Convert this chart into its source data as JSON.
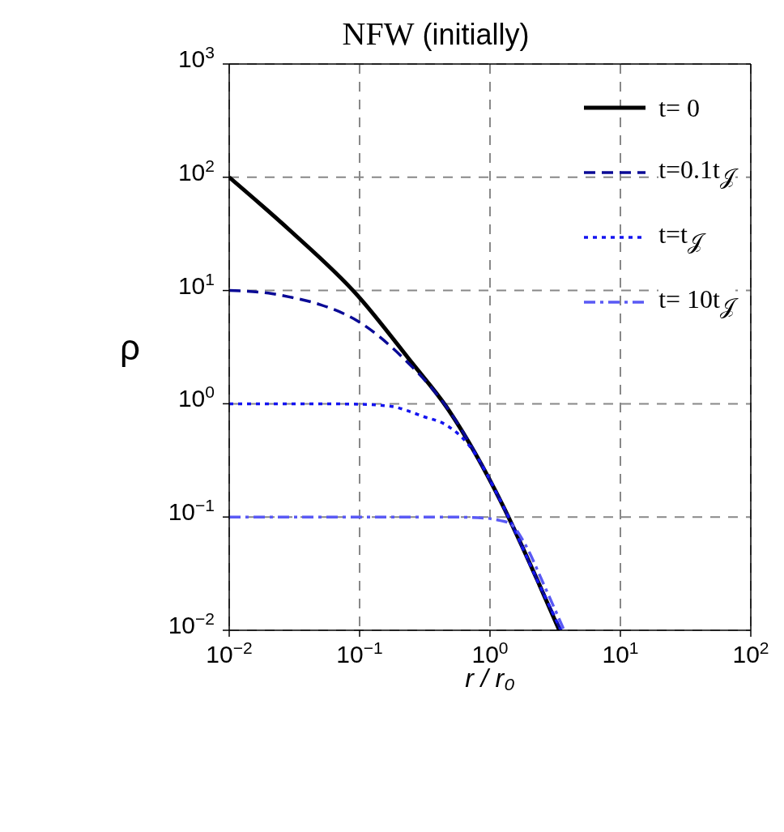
{
  "chart_data": {
    "type": "line",
    "title": "NFW (initially)",
    "xlabel": "r / r₀",
    "ylabel": "ρ",
    "log": "xy",
    "grid": true,
    "legend": "top right",
    "xlim": [
      0.01,
      100
    ],
    "ylim": [
      0.01,
      1000
    ],
    "xticks": [
      {
        "value": 0.01,
        "label": "10$^{−2}$"
      },
      {
        "value": 0.1,
        "label": "10$^{−1}$"
      },
      {
        "value": 1,
        "label": "10$^{0}$"
      },
      {
        "value": 10,
        "label": "10$^{1}$"
      },
      {
        "value": 100,
        "label": "10$^{2}$"
      }
    ],
    "yticks": [
      {
        "value": 0.01,
        "label": "10$^{−2}$"
      },
      {
        "value": 0.1,
        "label": "10$^{−1}$"
      },
      {
        "value": 1,
        "label": "10$^{0}$"
      },
      {
        "value": 10,
        "label": "10$^{1}$"
      },
      {
        "value": 100,
        "label": "10$^{2}$"
      },
      {
        "value": 1000,
        "label": "10$^{3}$"
      }
    ],
    "series": [
      {
        "name": "t= 0",
        "color": "#000000",
        "line_style": "solid",
        "x": [
          0.01,
          0.0295,
          0.096,
          0.255,
          0.46,
          1.24,
          2.4,
          3.4
        ],
        "values": [
          100,
          33.6,
          9.1,
          2.26,
          0.95,
          0.13,
          0.025,
          0.01
        ]
      },
      {
        "name": "t=0.1t$_{𝒥}$",
        "color": "#0a0a96",
        "line_style": "dashed",
        "x": [
          0.01,
          0.02,
          0.03,
          0.05,
          0.096,
          0.211,
          0.46,
          1.24,
          2.4,
          3.5
        ],
        "values": [
          10,
          9.5,
          8.7,
          7.5,
          5.4,
          2.6,
          0.95,
          0.13,
          0.025,
          0.01
        ]
      },
      {
        "name": "t=t$_{𝒥}$",
        "color": "#1414f0",
        "line_style": "dotted",
        "x": [
          0.01,
          0.05,
          0.1,
          0.173,
          0.31,
          0.46,
          0.69,
          1.24,
          2.4,
          3.5
        ],
        "values": [
          1,
          1,
          0.99,
          0.95,
          0.77,
          0.65,
          0.43,
          0.13,
          0.025,
          0.01
        ]
      },
      {
        "name": "t= 10t$_{𝒥}$",
        "color": "#5a5af5",
        "line_style": "dashdot",
        "x": [
          0.01,
          0.1,
          0.5,
          0.9,
          1.2,
          1.44,
          1.82,
          2.6,
          3.7
        ],
        "values": [
          0.1,
          0.1,
          0.1,
          0.098,
          0.093,
          0.087,
          0.06,
          0.025,
          0.01
        ]
      }
    ]
  }
}
